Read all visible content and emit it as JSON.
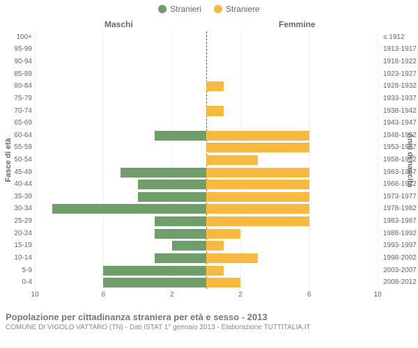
{
  "legend": {
    "male": "Stranieri",
    "female": "Straniere",
    "male_color": "#6f9e6b",
    "female_color": "#f8b940"
  },
  "column_headers": {
    "male": "Maschi",
    "female": "Femmine"
  },
  "axis_labels": {
    "left": "Fasce di età",
    "right": "Anni di nascita"
  },
  "styling": {
    "text_color": "#666666",
    "grid_color": "#f0f0f0",
    "center_line_color": "#555555",
    "background": "#ffffff",
    "label_fontsize": 10,
    "header_fontsize": 12,
    "title_fontsize": 13,
    "bar_height_pct": 80
  },
  "x_axis": {
    "max": 10,
    "ticks": [
      10,
      6,
      2,
      2,
      6,
      10
    ]
  },
  "age_bands": [
    {
      "age": "100+",
      "birth": "≤ 1912",
      "m": 0,
      "f": 0
    },
    {
      "age": "95-99",
      "birth": "1913-1917",
      "m": 0,
      "f": 0
    },
    {
      "age": "90-94",
      "birth": "1918-1922",
      "m": 0,
      "f": 0
    },
    {
      "age": "85-89",
      "birth": "1923-1927",
      "m": 0,
      "f": 0
    },
    {
      "age": "80-84",
      "birth": "1928-1932",
      "m": 0,
      "f": 1
    },
    {
      "age": "75-79",
      "birth": "1933-1937",
      "m": 0,
      "f": 0
    },
    {
      "age": "70-74",
      "birth": "1938-1942",
      "m": 0,
      "f": 1
    },
    {
      "age": "65-69",
      "birth": "1943-1947",
      "m": 0,
      "f": 0
    },
    {
      "age": "60-64",
      "birth": "1948-1952",
      "m": 3,
      "f": 6
    },
    {
      "age": "55-59",
      "birth": "1953-1957",
      "m": 0,
      "f": 6
    },
    {
      "age": "50-54",
      "birth": "1958-1962",
      "m": 0,
      "f": 3
    },
    {
      "age": "45-49",
      "birth": "1963-1967",
      "m": 5,
      "f": 6
    },
    {
      "age": "40-44",
      "birth": "1968-1972",
      "m": 4,
      "f": 6
    },
    {
      "age": "35-39",
      "birth": "1973-1977",
      "m": 4,
      "f": 6
    },
    {
      "age": "30-34",
      "birth": "1978-1982",
      "m": 9,
      "f": 6
    },
    {
      "age": "25-29",
      "birth": "1983-1987",
      "m": 3,
      "f": 6
    },
    {
      "age": "20-24",
      "birth": "1988-1992",
      "m": 3,
      "f": 2
    },
    {
      "age": "15-19",
      "birth": "1993-1997",
      "m": 2,
      "f": 1
    },
    {
      "age": "10-14",
      "birth": "1998-2002",
      "m": 3,
      "f": 3
    },
    {
      "age": "5-9",
      "birth": "2003-2007",
      "m": 6,
      "f": 1
    },
    {
      "age": "0-4",
      "birth": "2008-2012",
      "m": 6,
      "f": 2
    }
  ],
  "footer": {
    "title": "Popolazione per cittadinanza straniera per età e sesso - 2013",
    "subtitle": "COMUNE DI VIGOLO VATTARO (TN) - Dati ISTAT 1° gennaio 2013 - Elaborazione TUTTITALIA.IT"
  }
}
